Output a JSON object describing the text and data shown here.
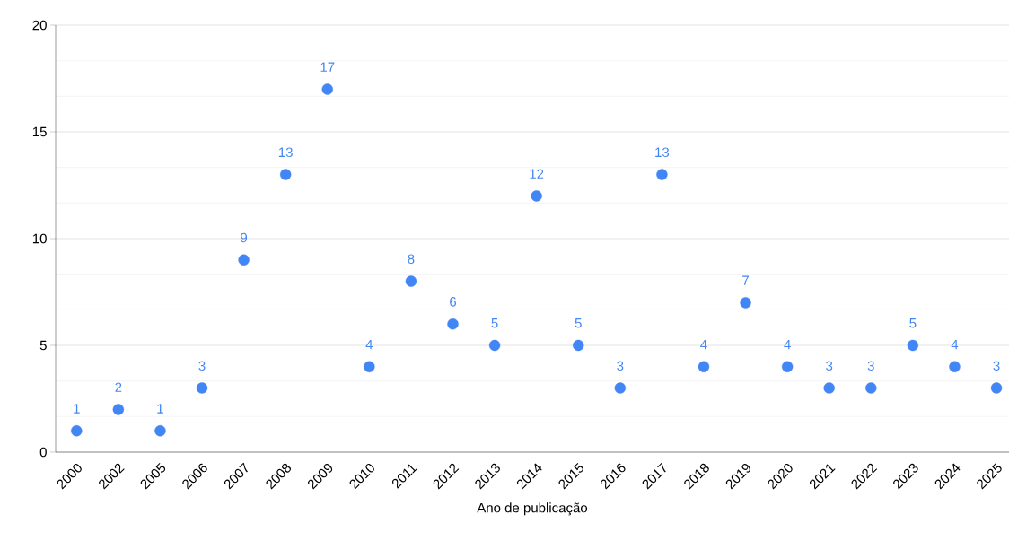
{
  "chart_data": {
    "type": "scatter",
    "xlabel": "Ano de publicação",
    "categories": [
      "2000",
      "2002",
      "2005",
      "2006",
      "2007",
      "2008",
      "2009",
      "2010",
      "2011",
      "2012",
      "2013",
      "2014",
      "2015",
      "2016",
      "2017",
      "2018",
      "2019",
      "2020",
      "2021",
      "2022",
      "2023",
      "2024",
      "2025"
    ],
    "values": [
      1,
      2,
      1,
      3,
      9,
      13,
      17,
      4,
      8,
      6,
      5,
      12,
      5,
      3,
      13,
      4,
      7,
      4,
      3,
      3,
      5,
      4,
      3
    ],
    "color": "#4285f4",
    "ylim": [
      0,
      20
    ],
    "yticks": [
      0,
      5,
      10,
      15,
      20
    ],
    "grid": "y",
    "marker": "circle",
    "data_labels": true
  }
}
